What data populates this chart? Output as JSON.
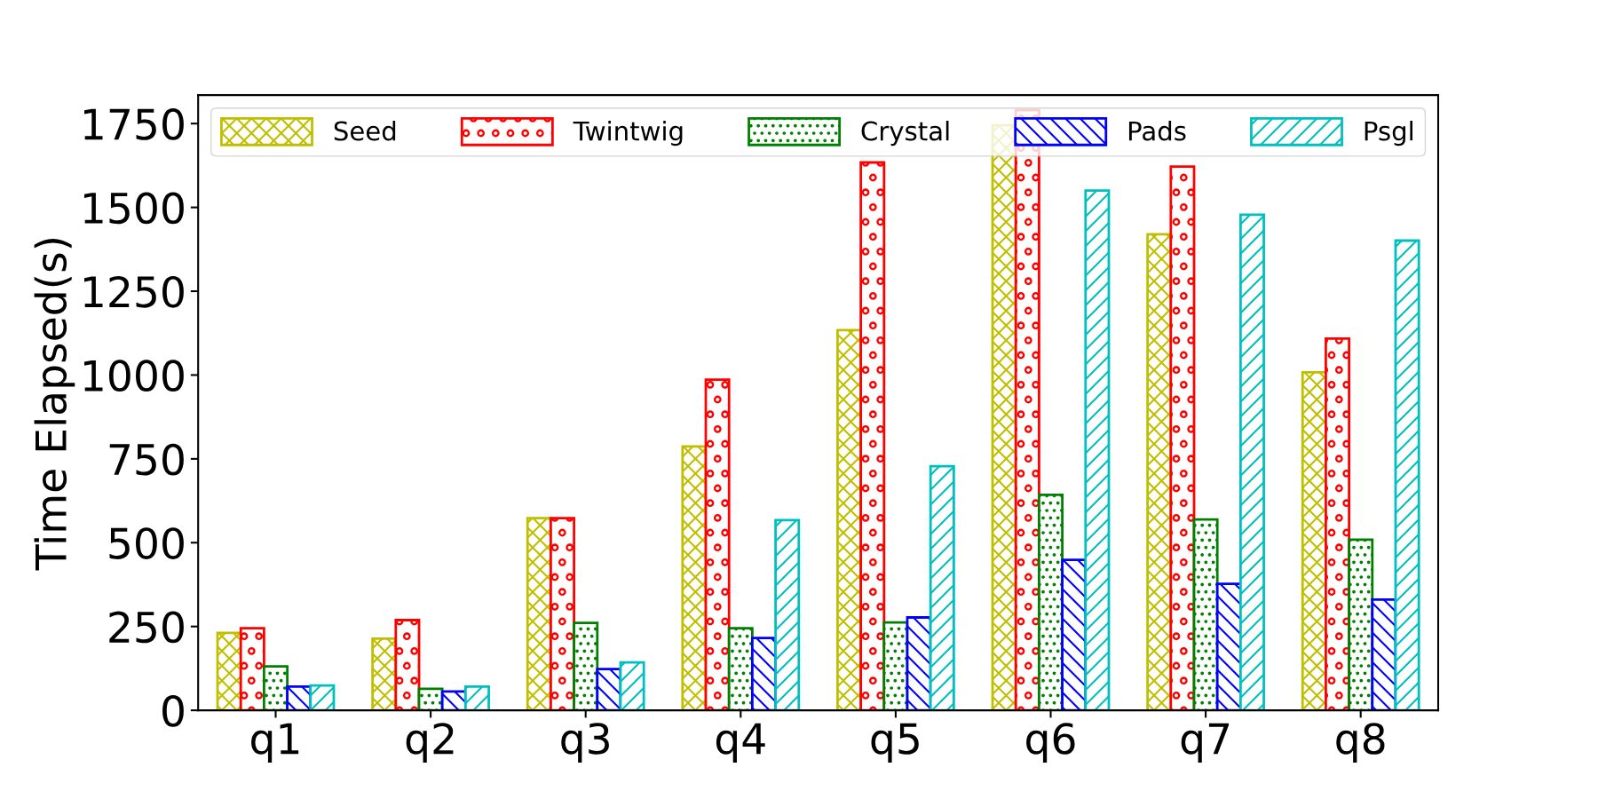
{
  "chart_data": {
    "type": "bar",
    "ylabel": "Time Elapsed(s)",
    "categories": [
      "q1",
      "q2",
      "q3",
      "q4",
      "q5",
      "q6",
      "q7",
      "q8"
    ],
    "series": [
      {
        "name": "Seed",
        "color": "#bfbf00",
        "values": [
          231,
          214,
          573,
          787,
          1134,
          1745,
          1420,
          1008
        ]
      },
      {
        "name": "Twintwig",
        "color": "#ff0000",
        "values": [
          245,
          269,
          573,
          986,
          1634,
          1790,
          1622,
          1109
        ]
      },
      {
        "name": "Crystal",
        "color": "#008000",
        "values": [
          131,
          64,
          261,
          245,
          262,
          643,
          569,
          509
        ]
      },
      {
        "name": "Pads",
        "color": "#0000ff",
        "values": [
          71,
          56,
          123,
          216,
          277,
          449,
          377,
          330
        ]
      },
      {
        "name": "Psgl",
        "color": "#00bfbf",
        "values": [
          74,
          71,
          143,
          567,
          728,
          1550,
          1478,
          1401
        ]
      }
    ],
    "ylim": [
      0,
      1835
    ],
    "yticks": [
      0,
      250,
      500,
      750,
      1000,
      1250,
      1500,
      1750
    ],
    "grid": false,
    "legend": "top"
  }
}
